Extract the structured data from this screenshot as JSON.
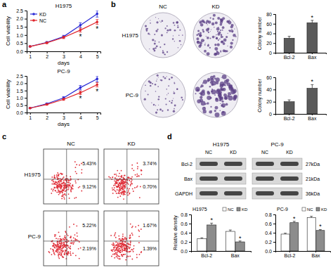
{
  "chart_data": [
    {
      "type": "line",
      "title": "H1975",
      "x_label": "days",
      "y_label": "Cell viability",
      "x": [
        1,
        2,
        3,
        4,
        5
      ],
      "xlim": [
        0.8,
        5.2
      ],
      "xticks": [
        1,
        2,
        3,
        4,
        5
      ],
      "ylim": [
        0,
        2.5
      ],
      "yticks": [
        {
          "value": 0,
          "label": "0.0"
        },
        {
          "value": 0.5,
          "label": "0.5"
        },
        {
          "value": 1,
          "label": "1.0"
        },
        {
          "value": 1.5,
          "label": "1.5"
        },
        {
          "value": 2,
          "label": "2.0"
        },
        {
          "value": 2.5,
          "label": "2.5"
        }
      ],
      "legend": "top-left",
      "marker": "circle",
      "series": [
        {
          "name": "KD",
          "color": "#2b2bd6",
          "values": [
            0.3,
            0.55,
            0.9,
            1.6,
            2.3
          ],
          "errors": [
            0.03,
            0.05,
            0.08,
            0.15,
            0.2
          ]
        },
        {
          "name": "NC",
          "color": "#e0242a",
          "values": [
            0.3,
            0.52,
            0.85,
            1.3,
            1.8
          ],
          "errors": [
            0.03,
            0.05,
            0.07,
            0.12,
            0.15
          ]
        }
      ],
      "significance": [
        null,
        null,
        null,
        "*",
        "*"
      ]
    },
    {
      "type": "line",
      "title": "PC-9",
      "x_label": "days",
      "y_label": "Cell viability",
      "x": [
        1,
        2,
        3,
        4,
        5
      ],
      "xlim": [
        0.8,
        5.2
      ],
      "xticks": [
        1,
        2,
        3,
        4,
        5
      ],
      "ylim": [
        0,
        2.5
      ],
      "yticks": [
        {
          "value": 0,
          "label": "0.0"
        },
        {
          "value": 0.5,
          "label": "0.5"
        },
        {
          "value": 1,
          "label": "1.0"
        },
        {
          "value": 1.5,
          "label": "1.5"
        },
        {
          "value": 2,
          "label": "2.0"
        },
        {
          "value": 2.5,
          "label": "2.5"
        }
      ],
      "marker": "circle",
      "series": [
        {
          "name": "KD",
          "color": "#2b2bd6",
          "values": [
            0.3,
            0.6,
            1.0,
            1.7,
            2.3
          ],
          "errors": [
            0.03,
            0.05,
            0.08,
            0.15,
            0.2
          ]
        },
        {
          "name": "NC",
          "color": "#e0242a",
          "values": [
            0.3,
            0.55,
            0.9,
            1.35,
            1.9
          ],
          "errors": [
            0.03,
            0.05,
            0.07,
            0.12,
            0.15
          ]
        }
      ],
      "significance": [
        null,
        null,
        null,
        "*",
        "*"
      ]
    },
    {
      "type": "bar",
      "y_label": "Colony number",
      "categories": [
        "Bcl-2",
        "Bax"
      ],
      "values": [
        30,
        62
      ],
      "errors": [
        4,
        5
      ],
      "color": "#5a5a5a",
      "ylim": [
        0,
        80
      ],
      "yticks": [
        0,
        20,
        40,
        60,
        80
      ],
      "significance": [
        null,
        "*"
      ]
    },
    {
      "type": "bar",
      "y_label": "Colony number",
      "categories": [
        "Bcl-2",
        "Bax"
      ],
      "values": [
        20,
        42
      ],
      "errors": [
        3,
        6
      ],
      "color": "#5a5a5a",
      "ylim": [
        0,
        60
      ],
      "yticks": [
        0,
        20,
        40,
        60
      ],
      "significance": [
        null,
        "*"
      ]
    },
    {
      "type": "bar",
      "title": "H1975",
      "y_label": "Relative density",
      "categories": [
        "Bcl-2",
        "Bax"
      ],
      "ylim": [
        0,
        0.8
      ],
      "yticks": [
        {
          "value": 0,
          "label": "0.0"
        },
        {
          "value": 0.2,
          "label": "0.2"
        },
        {
          "value": 0.4,
          "label": "0.4"
        },
        {
          "value": 0.6,
          "label": "0.6"
        },
        {
          "value": 0.8,
          "label": "0.8"
        }
      ],
      "legend": "top-right",
      "series": [
        {
          "name": "NC",
          "color": "#ffffff",
          "values": [
            0.27,
            0.43
          ],
          "errors": [
            0.02,
            0.03
          ]
        },
        {
          "name": "KD",
          "color": "#8c8c8c",
          "values": [
            0.57,
            0.2
          ],
          "errors": [
            0.04,
            0.02
          ],
          "significance": [
            "*",
            "*"
          ]
        }
      ]
    },
    {
      "type": "bar",
      "title": "PC-9",
      "categories": [
        "Bcl-2",
        "Bax"
      ],
      "ylim": [
        0,
        0.8
      ],
      "yticks": [
        {
          "value": 0,
          "label": "0.0"
        },
        {
          "value": 0.2,
          "label": "0.2"
        },
        {
          "value": 0.4,
          "label": "0.4"
        },
        {
          "value": 0.6,
          "label": "0.6"
        },
        {
          "value": 0.8,
          "label": "0.8"
        }
      ],
      "legend": "top-right",
      "series": [
        {
          "name": "NC",
          "color": "#ffffff",
          "values": [
            0.37,
            0.73
          ],
          "errors": [
            0.02,
            0.03
          ]
        },
        {
          "name": "KD",
          "color": "#8c8c8c",
          "values": [
            0.62,
            0.45
          ],
          "errors": [
            0.03,
            0.02
          ],
          "significance": [
            "*",
            "*"
          ]
        }
      ]
    }
  ],
  "panels": {
    "labels": [
      "a",
      "b",
      "c",
      "d"
    ],
    "colony": {
      "columns": [
        "NC",
        "KD"
      ],
      "rows": [
        "H1975",
        "PC-9"
      ]
    },
    "flow": {
      "columns": [
        "NC",
        "KD"
      ],
      "rows": [
        "H1975",
        "PC-9"
      ],
      "percentages": [
        [
          [
            "5.43%",
            "9.12%"
          ],
          [
            "3.74%",
            "0.70%"
          ]
        ],
        [
          [
            "5.22%",
            "2.19%"
          ],
          [
            "1.67%",
            "1.39%"
          ]
        ]
      ]
    },
    "blot": {
      "cell_lines": [
        "H1975",
        "PC-9"
      ],
      "lanes": [
        "NC",
        "KD",
        "NC",
        "KD"
      ],
      "proteins": [
        "Bcl-2",
        "Bax",
        "GAPDH"
      ],
      "sizes": [
        "27kDa",
        "21kDa",
        "36kDa"
      ]
    }
  }
}
